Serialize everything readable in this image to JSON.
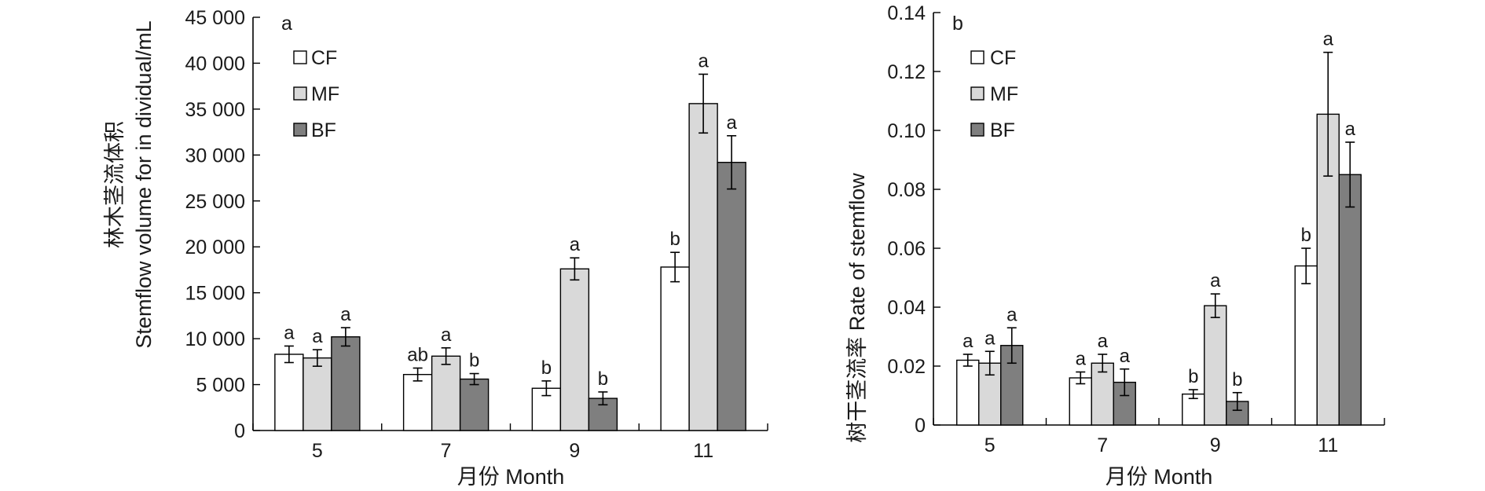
{
  "colors": {
    "CF": "#ffffff",
    "MF": "#d9d9d9",
    "BF": "#7f7f7f"
  },
  "chart_data": [
    {
      "type": "bar",
      "panel_label": "a",
      "categories": [
        "5",
        "7",
        "9",
        "11"
      ],
      "xlabel": "月份 Month",
      "ylabel_line1": "林木茎流体积",
      "ylabel_line2": "Stemflow volume for in dividual/mL",
      "ylim": [
        0,
        45000
      ],
      "yticks": [
        0,
        5000,
        10000,
        15000,
        20000,
        25000,
        30000,
        35000,
        40000,
        45000
      ],
      "ytick_labels": [
        "0",
        "5 000",
        "10 000",
        "15 000",
        "20 000",
        "25 000",
        "30 000",
        "35 000",
        "40 000",
        "45 000"
      ],
      "legend_position": "top-left",
      "series": [
        {
          "name": "CF",
          "values": [
            8300,
            6100,
            4600,
            17800
          ],
          "errors": [
            900,
            700,
            800,
            1600
          ],
          "letters": [
            "a",
            "ab",
            "b",
            "b"
          ]
        },
        {
          "name": "MF",
          "values": [
            7900,
            8100,
            17600,
            35600
          ],
          "errors": [
            900,
            900,
            1200,
            3200
          ],
          "letters": [
            "a",
            "a",
            "a",
            "a"
          ]
        },
        {
          "name": "BF",
          "values": [
            10200,
            5600,
            3500,
            29200
          ],
          "errors": [
            1000,
            600,
            700,
            2900
          ],
          "letters": [
            "a",
            "b",
            "b",
            "a"
          ]
        }
      ]
    },
    {
      "type": "bar",
      "panel_label": "b",
      "categories": [
        "5",
        "7",
        "9",
        "11"
      ],
      "xlabel": "月份 Month",
      "ylabel": "树干茎流率 Rate of stemflow",
      "ylim": [
        0,
        0.14
      ],
      "yticks": [
        0,
        0.02,
        0.04,
        0.06,
        0.08,
        0.1,
        0.12,
        0.14
      ],
      "ytick_labels": [
        "0",
        "0.02",
        "0.04",
        "0.06",
        "0.08",
        "0.10",
        "0.12",
        "0.14"
      ],
      "legend_position": "top-left",
      "series": [
        {
          "name": "CF",
          "values": [
            0.022,
            0.016,
            0.0105,
            0.054
          ],
          "errors": [
            0.002,
            0.002,
            0.0015,
            0.006
          ],
          "letters": [
            "a",
            "a",
            "b",
            "b"
          ]
        },
        {
          "name": "MF",
          "values": [
            0.021,
            0.021,
            0.0405,
            0.1055
          ],
          "errors": [
            0.004,
            0.003,
            0.004,
            0.021
          ],
          "letters": [
            "a",
            "a",
            "a",
            "a"
          ]
        },
        {
          "name": "BF",
          "values": [
            0.027,
            0.0145,
            0.008,
            0.085
          ],
          "errors": [
            0.006,
            0.0045,
            0.003,
            0.011
          ],
          "letters": [
            "a",
            "a",
            "b",
            "a"
          ]
        }
      ]
    }
  ]
}
